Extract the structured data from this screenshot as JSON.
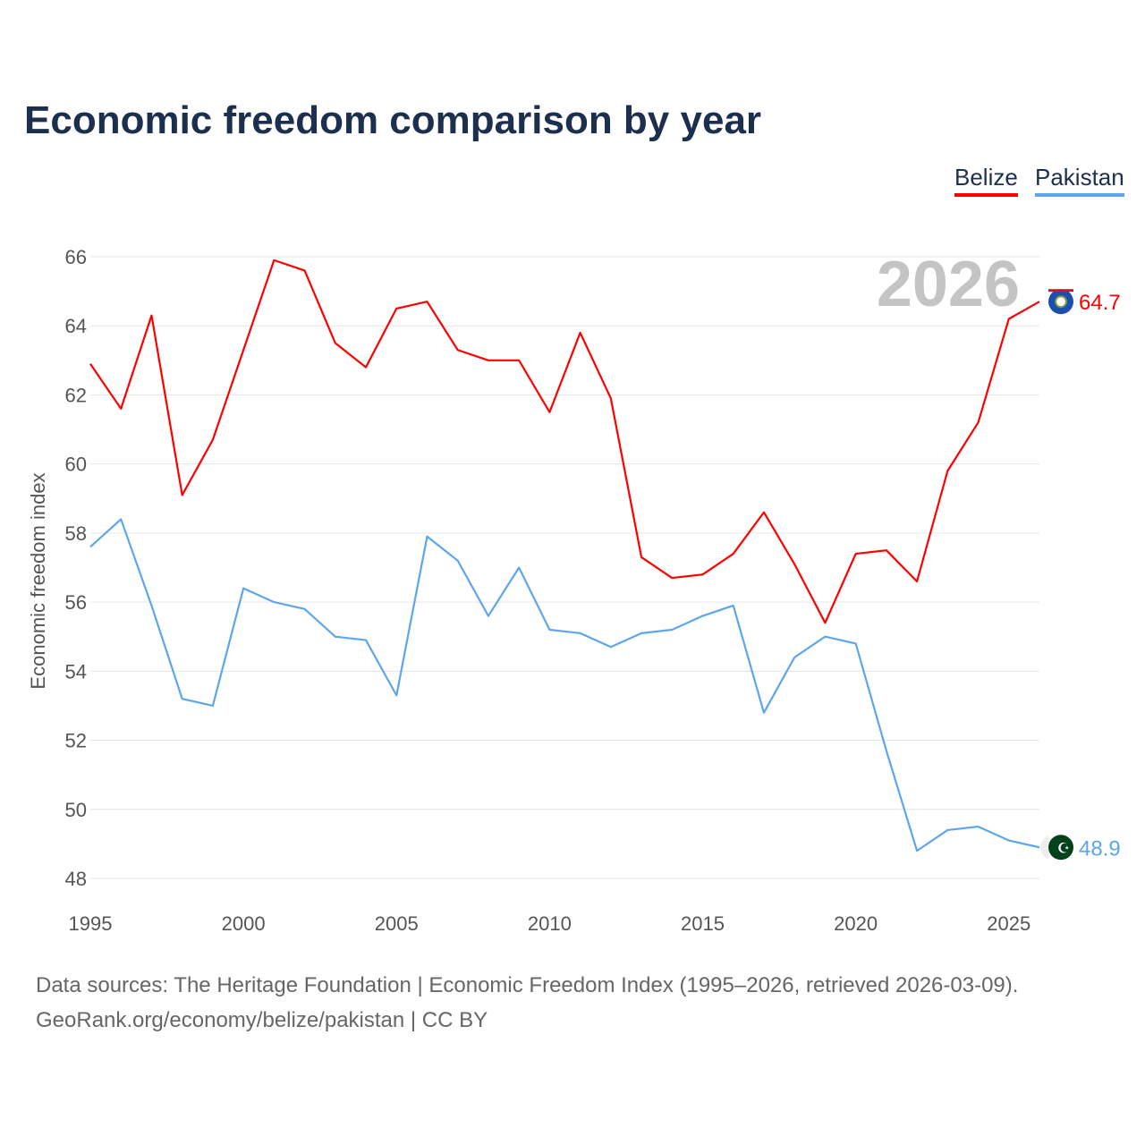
{
  "chart_data": {
    "type": "line",
    "title": "Economic freedom comparison by year",
    "xlabel": "",
    "ylabel": "Economic freedom index",
    "xlim": [
      1995,
      2026
    ],
    "ylim": [
      48,
      66
    ],
    "x_ticks": [
      1995,
      2000,
      2005,
      2010,
      2015,
      2020,
      2025
    ],
    "y_ticks": [
      48,
      50,
      52,
      54,
      56,
      58,
      60,
      62,
      64,
      66
    ],
    "grid": true,
    "legend_placement": "top-right",
    "year_watermark": "2026",
    "x": [
      1995,
      1996,
      1997,
      1998,
      1999,
      2000,
      2001,
      2002,
      2003,
      2004,
      2005,
      2006,
      2007,
      2008,
      2009,
      2010,
      2011,
      2012,
      2013,
      2014,
      2015,
      2016,
      2017,
      2018,
      2019,
      2020,
      2021,
      2022,
      2023,
      2024,
      2025,
      2026
    ],
    "series": [
      {
        "name": "Belize",
        "color": "#ff0000",
        "end_label": "64.7",
        "values": [
          62.9,
          61.6,
          64.3,
          59.1,
          60.7,
          63.3,
          65.9,
          65.6,
          63.5,
          62.8,
          64.5,
          64.7,
          63.3,
          63.0,
          63.0,
          61.5,
          63.8,
          61.9,
          57.3,
          56.7,
          56.8,
          57.4,
          58.6,
          57.1,
          55.4,
          57.4,
          57.5,
          56.6,
          59.8,
          61.2,
          64.2,
          64.7
        ]
      },
      {
        "name": "Pakistan",
        "color": "#5ea6ec",
        "end_label": "48.9",
        "values": [
          57.6,
          58.4,
          55.9,
          53.2,
          53.0,
          56.4,
          56.0,
          55.8,
          55.0,
          54.9,
          53.3,
          57.9,
          57.2,
          55.6,
          57.0,
          55.2,
          55.1,
          54.7,
          55.1,
          55.2,
          55.6,
          55.9,
          52.8,
          54.4,
          55.0,
          54.8,
          51.7,
          48.8,
          49.4,
          49.5,
          49.1,
          48.9
        ]
      }
    ]
  },
  "footer": {
    "line1": "Data sources: The Heritage Foundation | Economic Freedom Index (1995–2026, retrieved 2026-03-09).",
    "line2": "GeoRank.org/economy/belize/pakistan | CC BY"
  }
}
